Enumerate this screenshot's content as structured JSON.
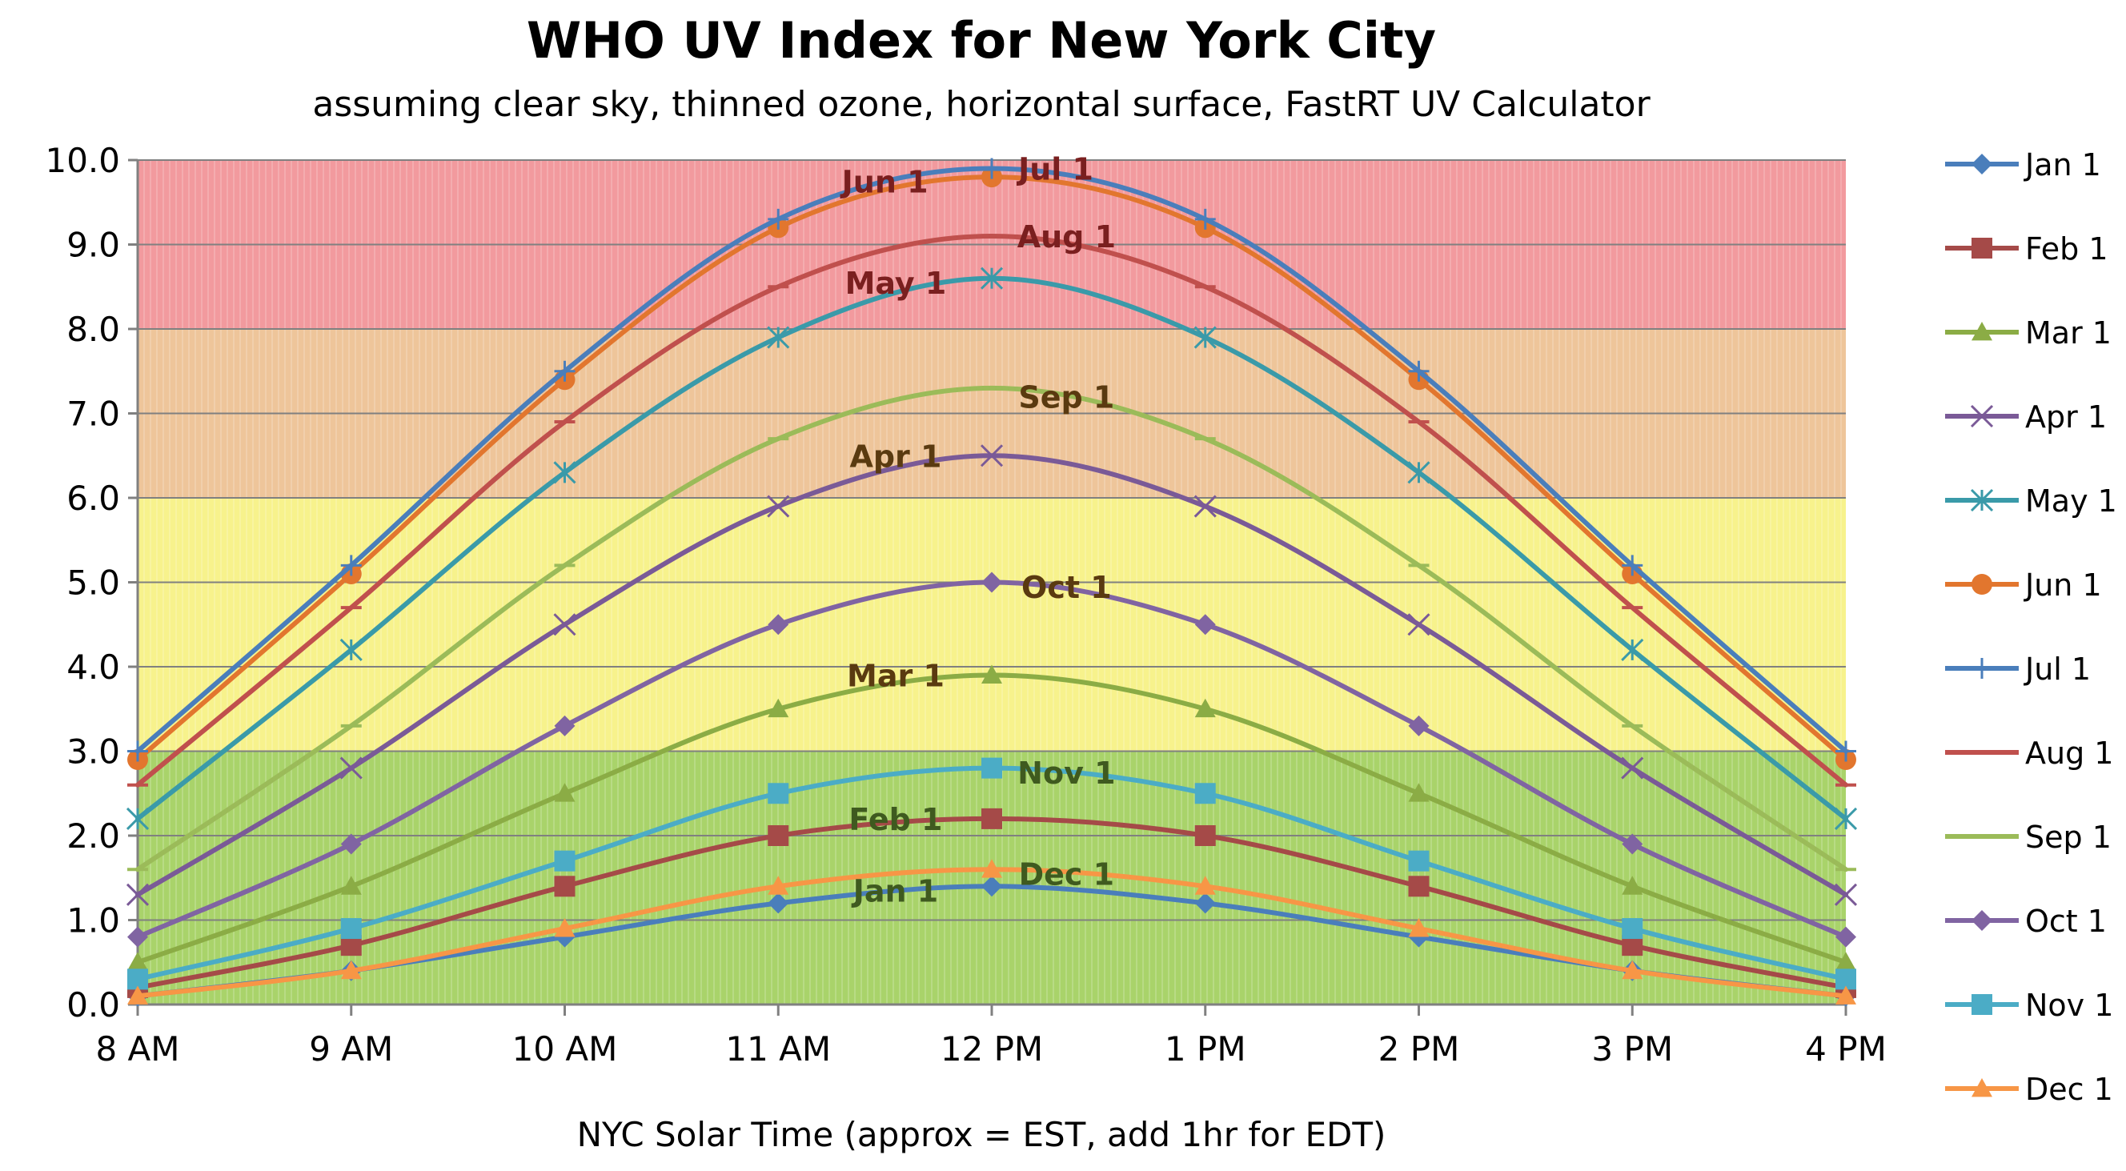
{
  "chart_data": {
    "type": "line",
    "title": "WHO UV Index for New York City",
    "subtitle": "assuming clear sky, thinned ozone, horizontal surface, FastRT UV Calculator",
    "xlabel": "NYC Solar Time (approx = EST, add 1hr for EDT)",
    "ylabel": "",
    "categories": [
      "8 AM",
      "9 AM",
      "10 AM",
      "11 AM",
      "12 PM",
      "1 PM",
      "2 PM",
      "3 PM",
      "4 PM"
    ],
    "ylim": [
      0,
      10
    ],
    "yticks": [
      "0.0",
      "1.0",
      "2.0",
      "3.0",
      "4.0",
      "5.0",
      "6.0",
      "7.0",
      "8.0",
      "9.0",
      "10.0"
    ],
    "grid": true,
    "legend_position": "right",
    "bands": [
      {
        "from": 0,
        "to": 3,
        "color": "#a9d36a"
      },
      {
        "from": 3,
        "to": 6,
        "color": "#f7f28c"
      },
      {
        "from": 6,
        "to": 8,
        "color": "#eec59a"
      },
      {
        "from": 8,
        "to": 10,
        "color": "#f29a9e"
      }
    ],
    "series": [
      {
        "name": "Jan 1",
        "color": "#4a7ebb",
        "marker": "diamond",
        "values": [
          0.1,
          0.4,
          0.8,
          1.2,
          1.4,
          1.2,
          0.8,
          0.4,
          0.1
        ]
      },
      {
        "name": "Feb 1",
        "color": "#a54a48",
        "marker": "square",
        "values": [
          0.2,
          0.7,
          1.4,
          2.0,
          2.2,
          2.0,
          1.4,
          0.7,
          0.2
        ]
      },
      {
        "name": "Mar 1",
        "color": "#8bac45",
        "marker": "triangle",
        "values": [
          0.5,
          1.4,
          2.5,
          3.5,
          3.9,
          3.5,
          2.5,
          1.4,
          0.5
        ]
      },
      {
        "name": "Apr 1",
        "color": "#7a5a97",
        "marker": "x",
        "values": [
          1.3,
          2.8,
          4.5,
          5.9,
          6.5,
          5.9,
          4.5,
          2.8,
          1.3
        ]
      },
      {
        "name": "May 1",
        "color": "#3a9aa9",
        "marker": "star",
        "values": [
          2.2,
          4.2,
          6.3,
          7.9,
          8.6,
          7.9,
          6.3,
          4.2,
          2.2
        ]
      },
      {
        "name": "Jun 1",
        "color": "#e2762e",
        "marker": "circle",
        "values": [
          2.9,
          5.1,
          7.4,
          9.2,
          9.8,
          9.2,
          7.4,
          5.1,
          2.9
        ]
      },
      {
        "name": "Jul 1",
        "color": "#4a7ebb",
        "marker": "plus",
        "values": [
          3.0,
          5.2,
          7.5,
          9.3,
          9.9,
          9.3,
          7.5,
          5.2,
          3.0
        ]
      },
      {
        "name": "Aug 1",
        "color": "#c0504d",
        "marker": "dash",
        "values": [
          2.6,
          4.7,
          6.9,
          8.5,
          9.1,
          8.5,
          6.9,
          4.7,
          2.6
        ]
      },
      {
        "name": "Sep 1",
        "color": "#9bbb59",
        "marker": "dash",
        "values": [
          1.6,
          3.3,
          5.2,
          6.7,
          7.3,
          6.7,
          5.2,
          3.3,
          1.6
        ]
      },
      {
        "name": "Oct 1",
        "color": "#8064a2",
        "marker": "diamond",
        "values": [
          0.8,
          1.9,
          3.3,
          4.5,
          5.0,
          4.5,
          3.3,
          1.9,
          0.8
        ]
      },
      {
        "name": "Nov 1",
        "color": "#4bacc6",
        "marker": "square",
        "values": [
          0.3,
          0.9,
          1.7,
          2.5,
          2.8,
          2.5,
          1.7,
          0.9,
          0.3
        ]
      },
      {
        "name": "Dec 1",
        "color": "#f79646",
        "marker": "triangle",
        "values": [
          0.1,
          0.4,
          0.9,
          1.4,
          1.6,
          1.4,
          0.9,
          0.4,
          0.1
        ]
      }
    ],
    "annotations": [
      {
        "text": "Jun 1",
        "x": 11.5,
        "y": 9.75,
        "color": "#7a1f1f"
      },
      {
        "text": "Jul 1",
        "x": 12.3,
        "y": 9.9,
        "color": "#7a1f1f"
      },
      {
        "text": "Aug 1",
        "x": 12.35,
        "y": 9.1,
        "color": "#7a1f1f"
      },
      {
        "text": "May 1",
        "x": 11.55,
        "y": 8.55,
        "color": "#7a1f1f"
      },
      {
        "text": "Sep 1",
        "x": 12.35,
        "y": 7.2,
        "color": "#5a3a10"
      },
      {
        "text": "Apr 1",
        "x": 11.55,
        "y": 6.5,
        "color": "#5a3a10"
      },
      {
        "text": "Oct 1",
        "x": 12.35,
        "y": 4.95,
        "color": "#5a3a10"
      },
      {
        "text": "Mar 1",
        "x": 11.55,
        "y": 3.9,
        "color": "#5a3a10"
      },
      {
        "text": "Nov 1",
        "x": 12.35,
        "y": 2.75,
        "color": "#3f5a1f"
      },
      {
        "text": "Feb 1",
        "x": 11.55,
        "y": 2.2,
        "color": "#3f5a1f"
      },
      {
        "text": "Dec 1",
        "x": 12.35,
        "y": 1.55,
        "color": "#3f5a1f"
      },
      {
        "text": "Jan 1",
        "x": 11.55,
        "y": 1.35,
        "color": "#3f5a1f"
      }
    ]
  }
}
